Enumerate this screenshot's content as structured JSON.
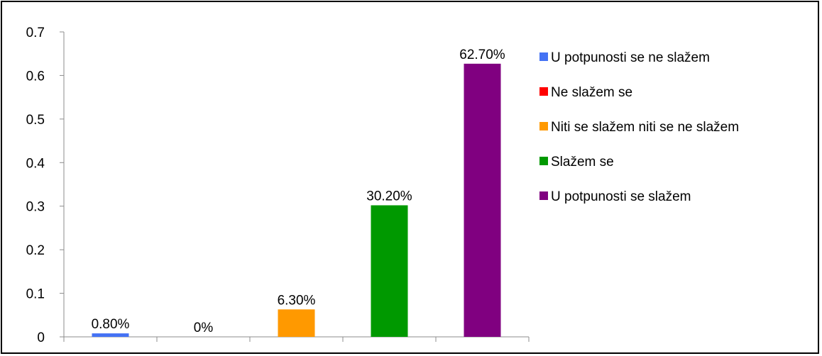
{
  "chart_data": {
    "type": "bar",
    "title": "",
    "xlabel": "",
    "ylabel": "",
    "ylim": [
      0,
      0.7
    ],
    "yticks": [
      0,
      0.1,
      0.2,
      0.3,
      0.4,
      0.5,
      0.6,
      0.7
    ],
    "ytick_labels": [
      "0",
      "0.1",
      "0.2",
      "0.3",
      "0.4",
      "0.5",
      "0.6",
      "0.7"
    ],
    "grid": false,
    "legend_position": "right",
    "series": [
      {
        "name": "U potpunosti se ne slažem",
        "value": 0.008,
        "label": "0.80%",
        "color": "#4472f4"
      },
      {
        "name": "Ne slažem se",
        "value": 0,
        "label": "0%",
        "color": "#ff0000"
      },
      {
        "name": "Niti se slažem niti se ne slažem",
        "value": 0.063,
        "label": "6.30%",
        "color": "#ff9900"
      },
      {
        "name": "Slažem se",
        "value": 0.302,
        "label": "30.20%",
        "color": "#009900"
      },
      {
        "name": "U potpunosti se slažem",
        "value": 0.627,
        "label": "62.70%",
        "color": "#800080"
      }
    ]
  }
}
